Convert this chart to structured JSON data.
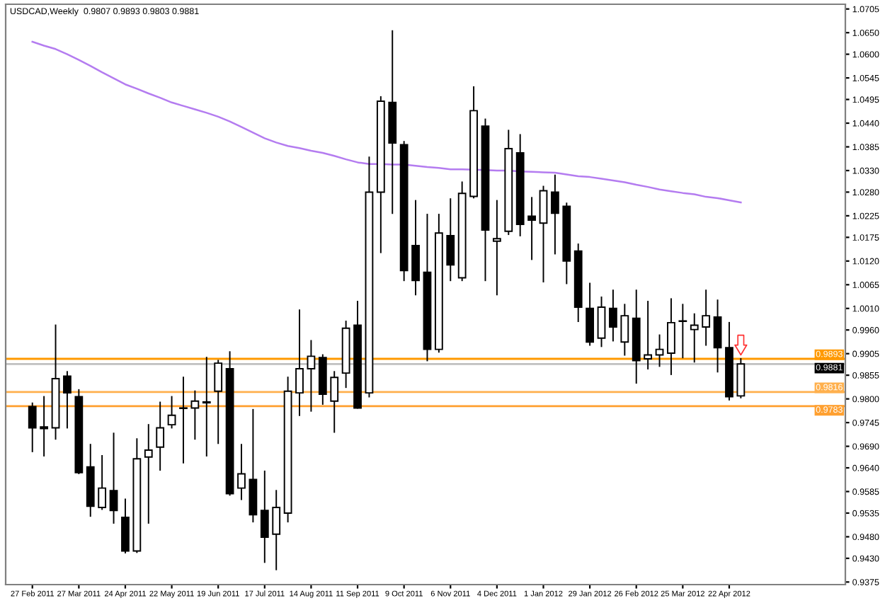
{
  "chart_data": {
    "type": "candlestick",
    "title": "USDCAD,Weekly  0.9807 0.9893 0.9803 0.9881",
    "categories": [
      "27 Feb 2011",
      null,
      null,
      null,
      "27 Mar 2011",
      null,
      null,
      null,
      "24 Apr 2011",
      null,
      null,
      null,
      "22 May 2011",
      null,
      null,
      null,
      "19 Jun 2011",
      null,
      null,
      null,
      "17 Jul 2011",
      null,
      null,
      null,
      "14 Aug 2011",
      null,
      null,
      null,
      "11 Sep 2011",
      null,
      null,
      null,
      "9 Oct 2011",
      null,
      null,
      null,
      "6 Nov 2011",
      null,
      null,
      null,
      "4 Dec 2011",
      null,
      null,
      null,
      "1 Jan 2012",
      null,
      null,
      null,
      "29 Jan 2012",
      null,
      null,
      null,
      "26 Feb 2012",
      null,
      null,
      null,
      "25 Mar 2012",
      null,
      null,
      null,
      "22 Apr 2012",
      null
    ],
    "ohlc": [
      [
        0.9782,
        0.979,
        0.9678,
        0.9733
      ],
      [
        0.9735,
        0.9805,
        0.9668,
        0.9731
      ],
      [
        0.9733,
        0.9971,
        0.9707,
        0.9847
      ],
      [
        0.9853,
        0.9863,
        0.9733,
        0.9814
      ],
      [
        0.9805,
        0.9821,
        0.9627,
        0.9629
      ],
      [
        0.9642,
        0.9694,
        0.9528,
        0.9551
      ],
      [
        0.9548,
        0.9668,
        0.9544,
        0.9593
      ],
      [
        0.9587,
        0.972,
        0.9512,
        0.9541
      ],
      [
        0.9525,
        0.9567,
        0.9443,
        0.9447
      ],
      [
        0.9447,
        0.9707,
        0.9444,
        0.9661
      ],
      [
        0.9665,
        0.974,
        0.9512,
        0.9681
      ],
      [
        0.9688,
        0.9792,
        0.9635,
        0.9733
      ],
      [
        0.974,
        0.9805,
        0.9733,
        0.9762
      ],
      [
        0.9779,
        0.985,
        0.9652,
        0.9778
      ],
      [
        0.9779,
        0.9818,
        0.9707,
        0.9795
      ],
      [
        0.9791,
        0.9896,
        0.9668,
        0.9793
      ],
      [
        0.9818,
        0.9889,
        0.9697,
        0.9883
      ],
      [
        0.987,
        0.9909,
        0.9577,
        0.958
      ],
      [
        0.9593,
        0.9694,
        0.9567,
        0.9626
      ],
      [
        0.9613,
        0.9775,
        0.9515,
        0.9531
      ],
      [
        0.9541,
        0.9632,
        0.9421,
        0.9479
      ],
      [
        0.9486,
        0.9587,
        0.9404,
        0.9548
      ],
      [
        0.9535,
        0.985,
        0.9515,
        0.9818
      ],
      [
        0.9814,
        1.0006,
        0.9762,
        0.987
      ],
      [
        0.987,
        0.9935,
        0.9772,
        0.9899
      ],
      [
        0.9896,
        0.9902,
        0.9788,
        0.9811
      ],
      [
        0.9795,
        0.9863,
        0.9723,
        0.985
      ],
      [
        0.986,
        0.998,
        0.9827,
        0.9964
      ],
      [
        0.9971,
        1.0026,
        0.9779,
        0.9779
      ],
      [
        0.9814,
        1.0361,
        0.9805,
        1.028
      ],
      [
        1.028,
        1.0501,
        1.014,
        1.0491
      ],
      [
        1.0488,
        1.0654,
        1.0231,
        1.0394
      ],
      [
        1.039,
        1.0397,
        1.0075,
        1.0098
      ],
      [
        1.0156,
        1.026,
        1.0042,
        1.0075
      ],
      [
        1.0094,
        1.0228,
        0.9889,
        0.9915
      ],
      [
        0.9915,
        1.0228,
        0.9909,
        1.0185
      ],
      [
        1.0179,
        1.0264,
        1.0075,
        1.0111
      ],
      [
        1.0081,
        1.0303,
        1.0075,
        1.0277
      ],
      [
        1.027,
        1.0524,
        1.0267,
        1.0469
      ],
      [
        1.0433,
        1.0449,
        1.0075,
        1.0192
      ],
      [
        1.0166,
        1.026,
        1.0042,
        1.0172
      ],
      [
        1.0189,
        1.0423,
        1.0182,
        1.0381
      ],
      [
        1.0371,
        1.0413,
        1.0179,
        1.0205
      ],
      [
        1.0224,
        1.0267,
        1.0124,
        1.0215
      ],
      [
        1.0208,
        1.0293,
        1.0072,
        1.0283
      ],
      [
        1.028,
        1.0319,
        1.0137,
        1.0231
      ],
      [
        1.0247,
        1.0254,
        1.0068,
        1.012
      ],
      [
        1.0143,
        1.0159,
        0.998,
        1.0013
      ],
      [
        1.001,
        1.0068,
        0.9925,
        0.9932
      ],
      [
        0.9941,
        1.0036,
        0.9922,
        1.0013
      ],
      [
        1.001,
        1.0052,
        0.9935,
        0.9967
      ],
      [
        0.9932,
        1.0019,
        0.9902,
        0.9993
      ],
      [
        0.9987,
        1.0052,
        0.9837,
        0.9889
      ],
      [
        0.9893,
        1.0026,
        0.987,
        0.9902
      ],
      [
        0.9902,
        0.9948,
        0.9876,
        0.9915
      ],
      [
        0.9906,
        1.0032,
        0.9857,
        0.9977
      ],
      [
        0.998,
        1.0019,
        0.9896,
        0.9981
      ],
      [
        0.9961,
        0.9997,
        0.9886,
        0.9971
      ],
      [
        0.9967,
        1.0052,
        0.9925,
        0.9993
      ],
      [
        0.999,
        1.0029,
        0.9863,
        0.9919
      ],
      [
        0.9919,
        0.9977,
        0.9798,
        0.9805
      ],
      [
        0.9807,
        0.9893,
        0.9803,
        0.9881
      ]
    ],
    "series": [
      {
        "type": "line",
        "color": "#b47cf0",
        "values": [
          1.0629,
          1.062,
          1.0612,
          1.06,
          1.0587,
          1.0573,
          1.0558,
          1.0544,
          1.053,
          1.052,
          1.0509,
          1.0499,
          1.0488,
          1.048,
          1.0472,
          1.0464,
          1.0455,
          1.0444,
          1.0431,
          1.0418,
          1.0405,
          1.0395,
          1.0387,
          1.0382,
          1.0376,
          1.0371,
          1.0364,
          1.0356,
          1.0349,
          1.0345,
          1.0345,
          1.0344,
          1.0344,
          1.0341,
          1.0338,
          1.0336,
          1.0333,
          1.0333,
          1.0332,
          1.0331,
          1.033,
          1.033,
          1.0328,
          1.0327,
          1.0326,
          1.0325,
          1.0321,
          1.0317,
          1.0315,
          1.0311,
          1.0307,
          1.0303,
          1.0297,
          1.0292,
          1.0286,
          1.0282,
          1.0278,
          1.0275,
          1.0269,
          1.0266,
          1.0261,
          1.0256
        ]
      }
    ],
    "ylim": [
      0.9369,
      1.0716
    ],
    "yticks": [
      1.0705,
      {
        "value": 1.065,
        "label": "1.0650"
      },
      {
        "value": 1.06,
        "label": "1.0600"
      },
      1.0545,
      1.0495,
      {
        "value": 1.044,
        "label": "1.0440"
      },
      1.0385,
      {
        "value": 1.033,
        "label": "1.0330"
      },
      {
        "value": 1.028,
        "label": "1.0280"
      },
      1.0225,
      1.0175,
      {
        "value": 1.012,
        "label": "1.0120"
      },
      1.0065,
      {
        "value": 1.001,
        "label": "1.0010"
      },
      {
        "value": 0.996,
        "label": "0.9960"
      },
      0.9905,
      0.9855,
      {
        "value": 0.98,
        "label": "0.9800"
      },
      0.9745,
      {
        "value": 0.969,
        "label": "0.9690"
      },
      {
        "value": 0.964,
        "label": "0.9640"
      },
      0.9585,
      0.9535,
      {
        "value": 0.948,
        "label": "0.9480"
      },
      {
        "value": 0.943,
        "label": "0.9430"
      },
      0.9375
    ],
    "ref_lines": [
      {
        "axis": "y",
        "value": 0.9893,
        "label": "0.9893",
        "color": "#ff9900"
      },
      {
        "axis": "y",
        "value": 0.9881,
        "label": "0.9881",
        "color": "#c0c0c0"
      },
      {
        "axis": "y",
        "value": 0.9816,
        "label": "0.9816",
        "color": "#ffb04d"
      },
      {
        "axis": "y",
        "value": 0.9783,
        "label": "0.9783",
        "color": "#ffa030"
      }
    ],
    "grid": false
  }
}
